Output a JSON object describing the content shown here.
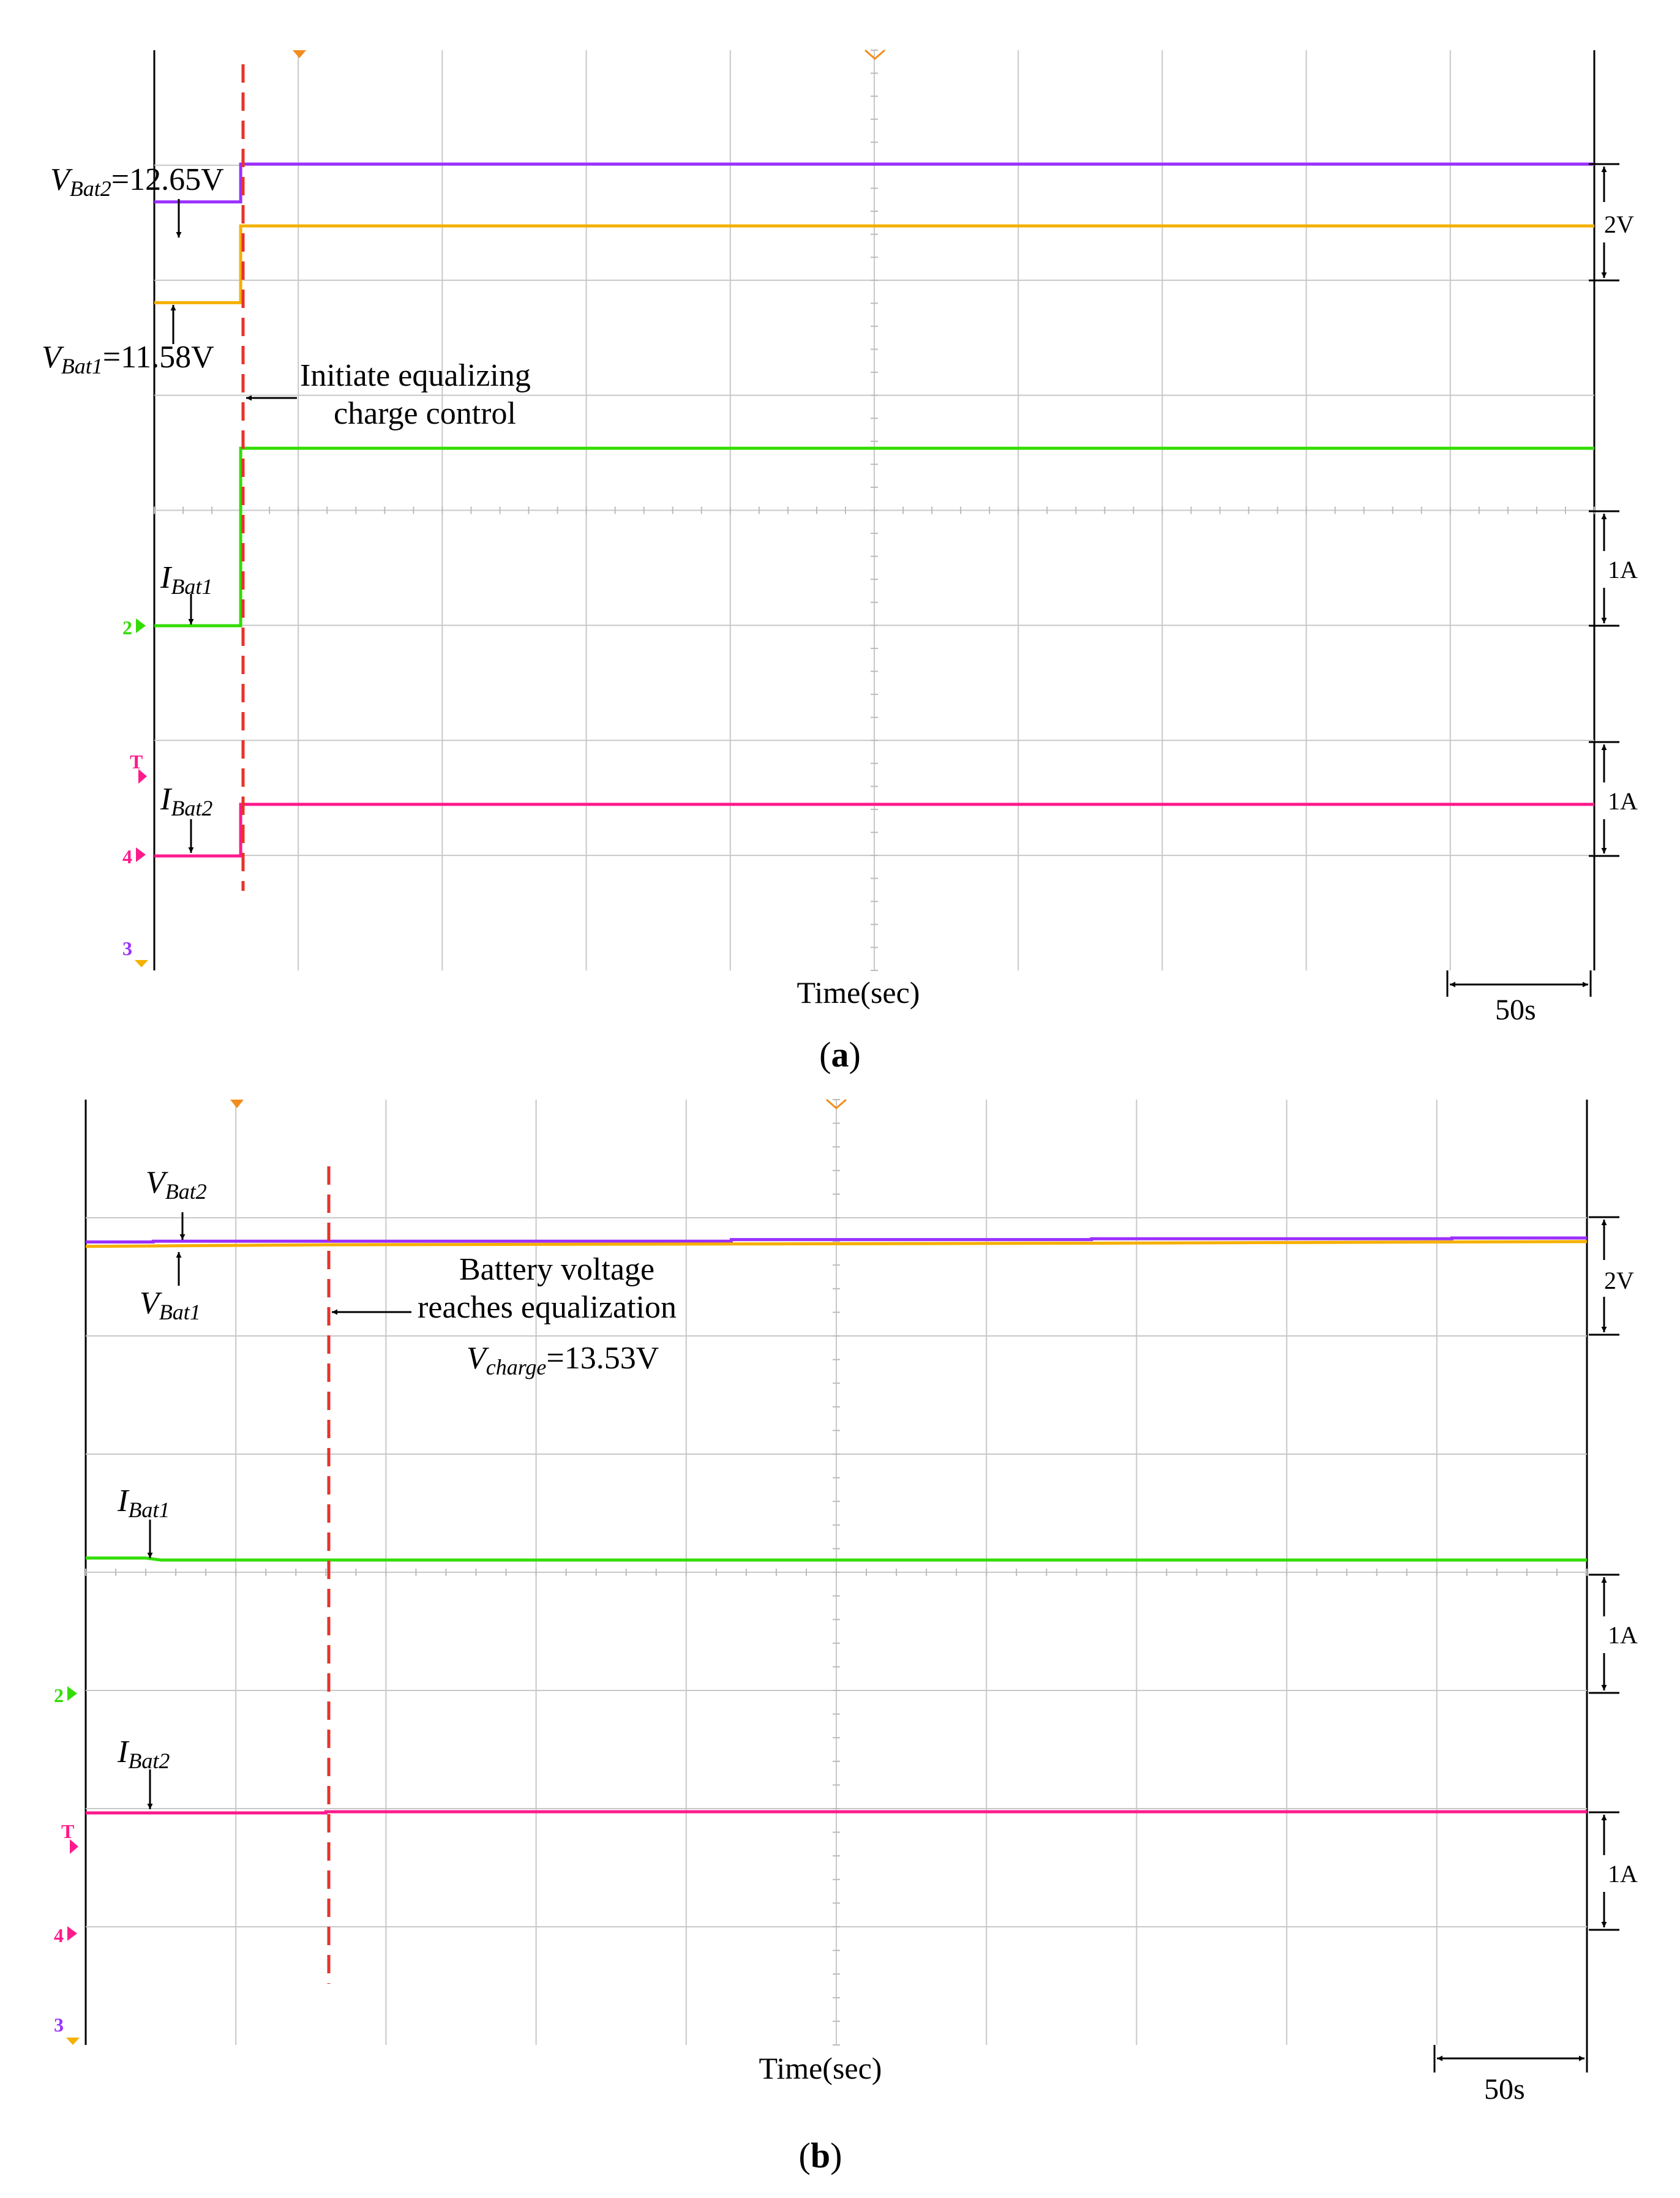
{
  "chart_data": [
    {
      "type": "line",
      "panel_label": "a",
      "xlabel": "Time(sec)",
      "time_per_div": "50s",
      "grid": true,
      "series": [
        {
          "name": "VBat2",
          "color": "#9b30ff",
          "points": [
            [
              0,
              12.65
            ],
            [
              0.6,
              12.65
            ],
            [
              0.6,
              13.3
            ],
            [
              10,
              13.3
            ]
          ]
        },
        {
          "name": "VBat1",
          "color": "#f5b000",
          "points": [
            [
              0,
              11.58
            ],
            [
              0.6,
              11.58
            ],
            [
              0.6,
              12.9
            ],
            [
              10,
              12.9
            ]
          ]
        },
        {
          "name": "IBat1",
          "color": "#33dd00",
          "points": [
            [
              0,
              0
            ],
            [
              0.6,
              0
            ],
            [
              0.6,
              1.55
            ],
            [
              10,
              1.55
            ]
          ]
        },
        {
          "name": "IBat2",
          "color": "#ff1a8c",
          "points": [
            [
              0,
              0
            ],
            [
              0.6,
              0
            ],
            [
              0.6,
              0.45
            ],
            [
              10,
              0.45
            ]
          ]
        }
      ],
      "event_time_div": 0.6,
      "annotations": {
        "vbat2": {
          "name": "V",
          "sub": "Bat2",
          "value": "=12.65V"
        },
        "vbat1": {
          "name": "V",
          "sub": "Bat1",
          "value": "=11.58V"
        },
        "ibat1": {
          "name": "I",
          "sub": "Bat1"
        },
        "ibat2": {
          "name": "I",
          "sub": "Bat2"
        },
        "event_line1": "Initiate equalizing",
        "event_line2": "charge control"
      },
      "scale_labels": [
        "2V",
        "1A",
        "1A"
      ],
      "time_scale_label": "50s",
      "channel_markers": [
        "2",
        "T",
        "4",
        "3"
      ]
    },
    {
      "type": "line",
      "panel_label": "b",
      "xlabel": "Time(sec)",
      "time_per_div": "50s",
      "grid": true,
      "series": [
        {
          "name": "VBat2",
          "color": "#9b30ff",
          "points": [
            [
              0,
              0.3
            ],
            [
              0.45,
              0.3
            ],
            [
              0.45,
              0.32
            ],
            [
              4.3,
              0.32
            ],
            [
              4.3,
              0.36
            ],
            [
              6.7,
              0.36
            ],
            [
              6.7,
              0.38
            ],
            [
              9.1,
              0.38
            ],
            [
              9.1,
              0.4
            ],
            [
              10,
              0.4
            ]
          ]
        },
        {
          "name": "VBat1",
          "color": "#f5b000",
          "points": [
            [
              0,
              0.22
            ],
            [
              0.8,
              0.24
            ],
            [
              1.6,
              0.26
            ],
            [
              4.3,
              0.28
            ],
            [
              6.7,
              0.3
            ],
            [
              9.1,
              0.33
            ],
            [
              10,
              0.34
            ]
          ]
        },
        {
          "name": "IBat1",
          "color": "#33dd00",
          "points": [
            [
              0,
              0.85
            ],
            [
              0.4,
              0.85
            ],
            [
              0.5,
              0.8
            ],
            [
              10,
              0.8
            ]
          ]
        },
        {
          "name": "IBat2",
          "color": "#ff1a8c",
          "points": [
            [
              0,
              -0.2
            ],
            [
              1.6,
              -0.2
            ],
            [
              1.6,
              -0.17
            ],
            [
              10,
              -0.17
            ]
          ]
        }
      ],
      "event_time_div": 1.6,
      "annotations": {
        "vbat2": {
          "name": "V",
          "sub": "Bat2"
        },
        "vbat1": {
          "name": "V",
          "sub": "Bat1"
        },
        "ibat1": {
          "name": "I",
          "sub": "Bat1"
        },
        "ibat2": {
          "name": "I",
          "sub": "Bat2"
        },
        "event_line1": "Battery voltage",
        "event_line2": "reaches equalization",
        "vcharge": {
          "name": "V",
          "sub": "charge",
          "value": "=13.53V"
        }
      },
      "scale_labels": [
        "2V",
        "1A",
        "1A"
      ],
      "time_scale_label": "50s",
      "channel_markers": [
        "2",
        "T",
        "4",
        "3"
      ]
    }
  ],
  "colors": {
    "grid": "#c8c8c8",
    "event_line": "#e8322a",
    "marker_orange": "#f28c1e"
  }
}
